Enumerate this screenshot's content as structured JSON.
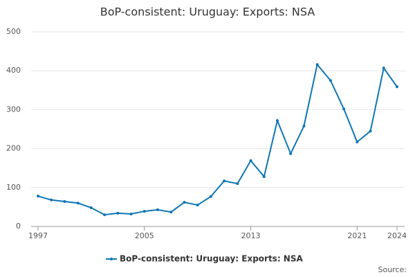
{
  "chart_data": {
    "type": "line",
    "title": "BoP-consistent: Uruguay: Exports: NSA",
    "x": [
      1997,
      1998,
      1999,
      2000,
      2001,
      2002,
      2003,
      2004,
      2005,
      2006,
      2007,
      2008,
      2009,
      2010,
      2011,
      2012,
      2013,
      2014,
      2015,
      2016,
      2017,
      2018,
      2019,
      2020,
      2021,
      2022,
      2023,
      2024
    ],
    "series": [
      {
        "name": "BoP-consistent: Uruguay: Exports: NSA",
        "color": "#0e75b6",
        "values": [
          78,
          68,
          64,
          60,
          48,
          30,
          34,
          32,
          39,
          43,
          37,
          62,
          55,
          77,
          117,
          110,
          169,
          128,
          272,
          187,
          258,
          416,
          375,
          302,
          217,
          245,
          407,
          359
        ]
      }
    ],
    "xlim": [
      1997,
      2024
    ],
    "xticks": [
      1997,
      2005,
      2013,
      2021,
      2024
    ],
    "ylim": [
      0,
      500
    ],
    "yticks": [
      0,
      100,
      200,
      300,
      400,
      500
    ],
    "grid": true,
    "source": "Source:"
  }
}
